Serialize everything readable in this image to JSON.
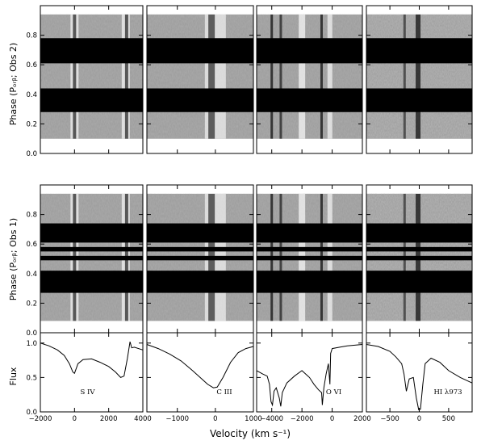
{
  "chart_data": {
    "type": "trailed_spectra_and_line_profiles",
    "xlabel": "Velocity (km s⁻¹)",
    "ylabel_top": "Phase (Pₒᵣᵦ; Obs 2)",
    "ylabel_middle": "Phase (Pₒᵣᵦ; Obs 1)",
    "ylabel_flux": "Flux",
    "phase_ticks": [
      "0.0",
      "0.2",
      "0.4",
      "0.6",
      "0.8"
    ],
    "flux_ticks": [
      "0.0",
      "0.5",
      "1.0"
    ],
    "phase_ylim": [
      0,
      1
    ],
    "flux_ylim": [
      0,
      1.15
    ],
    "obs2_masked_phase_bands": [
      [
        0.28,
        0.44
      ],
      [
        0.61,
        0.78
      ]
    ],
    "obs1_masked_phase_bands": [
      [
        0.27,
        0.42
      ],
      [
        0.49,
        0.52
      ],
      [
        0.55,
        0.58
      ],
      [
        0.61,
        0.74
      ]
    ],
    "panels": [
      {
        "ion": "S IV",
        "xlim": [
          -2000,
          4000
        ],
        "xticks": [
          -2000,
          0,
          2000,
          4000
        ],
        "xtick_labels": [
          "−2000",
          "0",
          "2000",
          "4000"
        ],
        "profile": {
          "x": [
            -2000,
            -1500,
            -1000,
            -600,
            -300,
            -100,
            0,
            200,
            500,
            1000,
            1500,
            2000,
            2400,
            2700,
            2900,
            3100,
            3250,
            3350,
            3500,
            4000
          ],
          "y": [
            1.0,
            0.96,
            0.9,
            0.82,
            0.7,
            0.58,
            0.56,
            0.7,
            0.76,
            0.77,
            0.72,
            0.66,
            0.58,
            0.5,
            0.52,
            0.78,
            1.02,
            0.93,
            0.94,
            0.9
          ]
        }
      },
      {
        "ion": "C III",
        "xlim": [
          -1800,
          1000
        ],
        "xticks": [
          -1000,
          0,
          1000
        ],
        "xtick_labels": [
          "−1000",
          "0",
          "1000"
        ],
        "profile": {
          "x": [
            -1800,
            -1500,
            -1200,
            -900,
            -600,
            -400,
            -200,
            -50,
            50,
            200,
            400,
            600,
            800,
            1000
          ],
          "y": [
            0.98,
            0.92,
            0.84,
            0.74,
            0.6,
            0.5,
            0.4,
            0.35,
            0.36,
            0.5,
            0.72,
            0.86,
            0.92,
            0.95
          ]
        }
      },
      {
        "ion": "O VI",
        "xlim": [
          -5000,
          2000
        ],
        "xticks": [
          -4000,
          -2000,
          0,
          2000
        ],
        "xtick_labels": [
          "−4000",
          "−2000",
          "0",
          "2000"
        ],
        "profile": {
          "x": [
            -5000,
            -4600,
            -4300,
            -4150,
            -4050,
            -3950,
            -3850,
            -3700,
            -3500,
            -3400,
            -3300,
            -3000,
            -2500,
            -2000,
            -1500,
            -1200,
            -900,
            -700,
            -650,
            -550,
            -400,
            -250,
            -150,
            -100,
            0,
            500,
            1000,
            2000
          ],
          "y": [
            0.6,
            0.55,
            0.52,
            0.4,
            0.15,
            0.1,
            0.3,
            0.35,
            0.2,
            0.08,
            0.28,
            0.42,
            0.52,
            0.6,
            0.5,
            0.4,
            0.32,
            0.28,
            0.1,
            0.35,
            0.55,
            0.7,
            0.4,
            0.85,
            0.92,
            0.94,
            0.96,
            0.98
          ]
        }
      },
      {
        "ion": "HI λ973",
        "xlim": [
          -900,
          900
        ],
        "xticks": [
          -500,
          0,
          500
        ],
        "xtick_labels": [
          "−500",
          "0",
          "500"
        ],
        "profile": {
          "x": [
            -900,
            -700,
            -500,
            -400,
            -300,
            -260,
            -220,
            -170,
            -100,
            -50,
            -10,
            20,
            60,
            100,
            200,
            350,
            500,
            700,
            900
          ],
          "y": [
            0.98,
            0.95,
            0.88,
            0.8,
            0.7,
            0.55,
            0.3,
            0.48,
            0.5,
            0.2,
            0.03,
            0.04,
            0.4,
            0.7,
            0.78,
            0.72,
            0.6,
            0.5,
            0.42
          ]
        }
      }
    ]
  }
}
